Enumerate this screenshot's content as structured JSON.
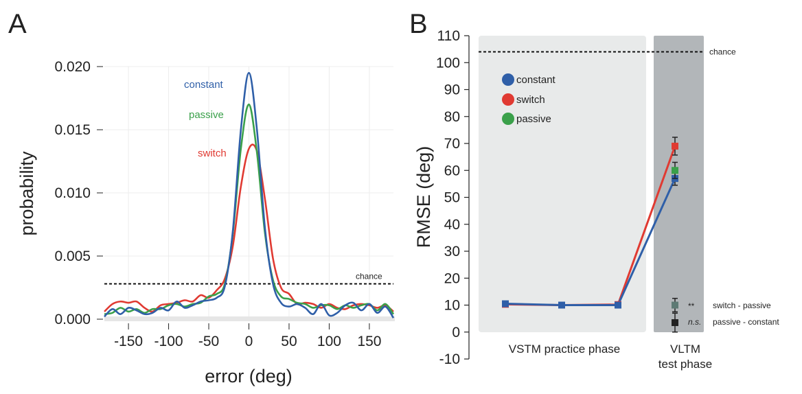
{
  "colors": {
    "constant": "#2f5fa8",
    "passive": "#3aa04a",
    "switch": "#e03a32",
    "practice_bg": "#e8eaea",
    "test_bg": "#b2b6b9",
    "chance": "#111111"
  },
  "chart_data": [
    {
      "id": "A",
      "type": "line",
      "panel_label": "A",
      "xlabel": "error (deg)",
      "ylabel": "probability",
      "xlim": [
        -180,
        180
      ],
      "ylim": [
        0,
        0.02
      ],
      "xticks": [
        -150,
        -100,
        -50,
        0,
        50,
        100,
        150
      ],
      "xtick_labels": [
        "-150",
        "-100",
        "-50",
        "0",
        "50",
        "100",
        "150"
      ],
      "yticks": [
        0,
        0.005,
        0.01,
        0.015,
        0.02
      ],
      "ytick_labels": [
        "0.000",
        "0.005",
        "0.010",
        "0.015",
        "0.020"
      ],
      "grid": true,
      "chance": {
        "value": 0.0028,
        "label": "chance"
      },
      "series": [
        {
          "name": "constant",
          "label": "constant",
          "x": [
            -180,
            -170,
            -160,
            -150,
            -140,
            -130,
            -120,
            -110,
            -100,
            -90,
            -80,
            -70,
            -60,
            -50,
            -40,
            -30,
            -20,
            -10,
            0,
            10,
            20,
            30,
            40,
            50,
            60,
            70,
            80,
            90,
            100,
            110,
            120,
            130,
            140,
            150,
            160,
            170,
            180
          ],
          "y": [
            0.0002,
            0.0008,
            0.0004,
            0.0009,
            0.0007,
            0.0004,
            0.0005,
            0.0009,
            0.0007,
            0.0014,
            0.0009,
            0.0011,
            0.0014,
            0.0015,
            0.0017,
            0.0026,
            0.007,
            0.015,
            0.0195,
            0.015,
            0.0072,
            0.0028,
            0.0013,
            0.001,
            0.0012,
            0.0009,
            0.0004,
            0.0012,
            0.0003,
            0.0005,
            0.0011,
            0.0013,
            0.0007,
            0.0012,
            0.0005,
            0.001,
            0.0001
          ]
        },
        {
          "name": "passive",
          "label": "passive",
          "x": [
            -180,
            -170,
            -160,
            -150,
            -140,
            -130,
            -120,
            -110,
            -100,
            -90,
            -80,
            -70,
            -60,
            -50,
            -40,
            -30,
            -20,
            -10,
            0,
            10,
            20,
            30,
            40,
            50,
            60,
            70,
            80,
            90,
            100,
            110,
            120,
            130,
            140,
            150,
            160,
            170,
            180
          ],
          "y": [
            0.0004,
            0.0005,
            0.0009,
            0.0006,
            0.0008,
            0.0005,
            0.0008,
            0.0008,
            0.0011,
            0.0012,
            0.001,
            0.0012,
            0.0013,
            0.0018,
            0.002,
            0.0028,
            0.0068,
            0.0135,
            0.017,
            0.0132,
            0.0068,
            0.0031,
            0.0018,
            0.0016,
            0.0013,
            0.0012,
            0.0009,
            0.0011,
            0.0011,
            0.0008,
            0.0011,
            0.0009,
            0.0011,
            0.0012,
            0.0007,
            0.0012,
            0.0004
          ]
        },
        {
          "name": "switch",
          "label": "switch",
          "x": [
            -180,
            -170,
            -160,
            -150,
            -140,
            -130,
            -120,
            -110,
            -100,
            -90,
            -80,
            -70,
            -60,
            -50,
            -40,
            -30,
            -20,
            -10,
            0,
            10,
            20,
            30,
            40,
            50,
            60,
            70,
            80,
            90,
            100,
            110,
            120,
            130,
            140,
            150,
            160,
            170,
            180
          ],
          "y": [
            0.0006,
            0.0012,
            0.0014,
            0.0013,
            0.0014,
            0.0009,
            0.0006,
            0.0011,
            0.0012,
            0.0013,
            0.0015,
            0.0014,
            0.0019,
            0.0017,
            0.0023,
            0.0032,
            0.0058,
            0.0105,
            0.0135,
            0.0133,
            0.0095,
            0.0048,
            0.0025,
            0.002,
            0.0012,
            0.0013,
            0.0012,
            0.0009,
            0.0012,
            0.0009,
            0.0008,
            0.0011,
            0.0012,
            0.0011,
            0.0009,
            0.0011,
            0.0006
          ]
        }
      ]
    },
    {
      "id": "B",
      "type": "line",
      "panel_label": "B",
      "xlabel": "",
      "ylabel": "RMSE (deg)",
      "ylim": [
        -10,
        110
      ],
      "yticks": [
        -10,
        0,
        10,
        20,
        30,
        40,
        50,
        60,
        70,
        80,
        90,
        100,
        110
      ],
      "ytick_labels": [
        "-10",
        "0",
        "10",
        "20",
        "30",
        "40",
        "50",
        "60",
        "70",
        "80",
        "90",
        "100",
        "110"
      ],
      "phases": [
        "VSTM practice phase",
        "VLTM test phase"
      ],
      "chance": {
        "value": 104,
        "label": "chance"
      },
      "legend": [
        "constant",
        "switch",
        "passive"
      ],
      "series": [
        {
          "name": "constant",
          "x": [
            1,
            2,
            3,
            4
          ],
          "y": [
            10.5,
            10,
            10,
            57
          ],
          "error": [
            0,
            0,
            0,
            2.5
          ]
        },
        {
          "name": "switch",
          "x": [
            1,
            2,
            3,
            4
          ],
          "y": [
            10.3,
            10,
            10.2,
            69
          ],
          "error": [
            0,
            0,
            0,
            3.3
          ]
        },
        {
          "name": "passive",
          "x": [
            4
          ],
          "y": [
            60
          ],
          "error": [
            3.0
          ]
        }
      ],
      "comparisons": [
        {
          "label": "switch - passive",
          "significance": "**",
          "y": 10,
          "error": 2.5
        },
        {
          "label": "passive - constant",
          "significance": "n.s.",
          "y": 3.5,
          "error": 3.5
        }
      ]
    }
  ]
}
